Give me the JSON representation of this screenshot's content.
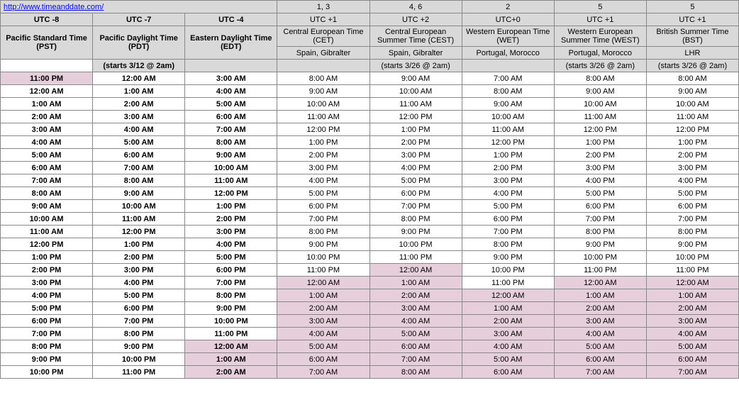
{
  "url": "http://www.timeanddate.com/",
  "topNumbers": [
    "",
    "",
    "",
    "1, 3",
    "4, 6",
    "2",
    "5",
    "5"
  ],
  "utcRow": [
    "UTC -8",
    "UTC -7",
    "UTC -4",
    "UTC +1",
    "UTC +2",
    "UTC+0",
    "UTC +1",
    "UTC +1"
  ],
  "tzNameRow": [
    "Pacific Standard Time (PST)",
    "Pacific Daylight Time (PDT)",
    "Eastern Daylight Time (EDT)",
    "Central European Time (CET)",
    "Central European Summer Time (CEST)",
    "Western European Time (WET)",
    "Western European Summer Time (WEST)",
    "British Summer Time (BST)"
  ],
  "regionRow": [
    "",
    "",
    "",
    "Spain, Gibralter",
    "Spain, Gibralter",
    "Portugal, Morocco",
    "Portugal, Morocco",
    "LHR"
  ],
  "startsRow": [
    "",
    "(starts 3/12 @ 2am)",
    "",
    "",
    "(starts 3/26 @ 2am)",
    "",
    "(starts 3/26 @ 2am)",
    "(starts 3/26 @ 2am)"
  ],
  "boldCols": [
    0,
    1,
    2
  ],
  "colors": {
    "headerBg": "#d9d9d9",
    "pink": "#e6cfda",
    "border": "#888888",
    "link": "#0000ee",
    "text": "#000000",
    "bg": "#ffffff"
  },
  "rows": [
    {
      "cells": [
        "11:00 PM",
        "12:00 AM",
        "3:00 AM",
        "8:00 AM",
        "9:00 AM",
        "7:00 AM",
        "8:00 AM",
        "8:00 AM"
      ],
      "pink": [
        0
      ]
    },
    {
      "cells": [
        "12:00 AM",
        "1:00 AM",
        "4:00 AM",
        "9:00 AM",
        "10:00 AM",
        "8:00 AM",
        "9:00 AM",
        "9:00 AM"
      ],
      "pink": []
    },
    {
      "cells": [
        "1:00 AM",
        "2:00 AM",
        "5:00 AM",
        "10:00 AM",
        "11:00 AM",
        "9:00 AM",
        "10:00 AM",
        "10:00 AM"
      ],
      "pink": []
    },
    {
      "cells": [
        "2:00 AM",
        "3:00 AM",
        "6:00 AM",
        "11:00 AM",
        "12:00 PM",
        "10:00 AM",
        "11:00 AM",
        "11:00 AM"
      ],
      "pink": []
    },
    {
      "cells": [
        "3:00 AM",
        "4:00 AM",
        "7:00 AM",
        "12:00 PM",
        "1:00 PM",
        "11:00 AM",
        "12:00 PM",
        "12:00 PM"
      ],
      "pink": []
    },
    {
      "cells": [
        "4:00 AM",
        "5:00 AM",
        "8:00 AM",
        "1:00 PM",
        "2:00 PM",
        "12:00 PM",
        "1:00 PM",
        "1:00 PM"
      ],
      "pink": []
    },
    {
      "cells": [
        "5:00 AM",
        "6:00 AM",
        "9:00 AM",
        "2:00 PM",
        "3:00 PM",
        "1:00 PM",
        "2:00 PM",
        "2:00 PM"
      ],
      "pink": []
    },
    {
      "cells": [
        "6:00 AM",
        "7:00 AM",
        "10:00 AM",
        "3:00 PM",
        "4:00 PM",
        "2:00 PM",
        "3:00 PM",
        "3:00 PM"
      ],
      "pink": []
    },
    {
      "cells": [
        "7:00 AM",
        "8:00 AM",
        "11:00 AM",
        "4:00 PM",
        "5:00 PM",
        "3:00 PM",
        "4:00 PM",
        "4:00 PM"
      ],
      "pink": [],
      "dashedBelow": true
    },
    {
      "cells": [
        "8:00 AM",
        "9:00 AM",
        "12:00 PM",
        "5:00 PM",
        "6:00 PM",
        "4:00 PM",
        "5:00 PM",
        "5:00 PM"
      ],
      "pink": []
    },
    {
      "cells": [
        "9:00 AM",
        "10:00 AM",
        "1:00 PM",
        "6:00 PM",
        "7:00 PM",
        "5:00 PM",
        "6:00 PM",
        "6:00 PM"
      ],
      "pink": []
    },
    {
      "cells": [
        "10:00 AM",
        "11:00 AM",
        "2:00 PM",
        "7:00 PM",
        "8:00 PM",
        "6:00 PM",
        "7:00 PM",
        "7:00 PM"
      ],
      "pink": []
    },
    {
      "cells": [
        "11:00 AM",
        "12:00 PM",
        "3:00 PM",
        "8:00 PM",
        "9:00 PM",
        "7:00 PM",
        "8:00 PM",
        "8:00 PM"
      ],
      "pink": []
    },
    {
      "cells": [
        "12:00 PM",
        "1:00 PM",
        "4:00 PM",
        "9:00 PM",
        "10:00 PM",
        "8:00 PM",
        "9:00 PM",
        "9:00 PM"
      ],
      "pink": []
    },
    {
      "cells": [
        "1:00 PM",
        "2:00 PM",
        "5:00 PM",
        "10:00 PM",
        "11:00 PM",
        "9:00 PM",
        "10:00 PM",
        "10:00 PM"
      ],
      "pink": []
    },
    {
      "cells": [
        "2:00 PM",
        "3:00 PM",
        "6:00 PM",
        "11:00 PM",
        "12:00 AM",
        "10:00 PM",
        "11:00 PM",
        "11:00 PM"
      ],
      "pink": [
        4
      ]
    },
    {
      "cells": [
        "3:00 PM",
        "4:00 PM",
        "7:00 PM",
        "12:00 AM",
        "1:00 AM",
        "11:00 PM",
        "12:00 AM",
        "12:00 AM"
      ],
      "pink": [
        3,
        4,
        6,
        7
      ]
    },
    {
      "cells": [
        "4:00 PM",
        "5:00 PM",
        "8:00 PM",
        "1:00 AM",
        "2:00 AM",
        "12:00 AM",
        "1:00 AM",
        "1:00 AM"
      ],
      "pink": [
        3,
        4,
        5,
        6,
        7
      ],
      "dashedBelow": true
    },
    {
      "cells": [
        "5:00 PM",
        "6:00 PM",
        "9:00 PM",
        "2:00 AM",
        "3:00 AM",
        "1:00 AM",
        "2:00 AM",
        "2:00 AM"
      ],
      "pink": [
        3,
        4,
        5,
        6,
        7
      ]
    },
    {
      "cells": [
        "6:00 PM",
        "7:00 PM",
        "10:00 PM",
        "3:00 AM",
        "4:00 AM",
        "2:00 AM",
        "3:00 AM",
        "3:00 AM"
      ],
      "pink": [
        3,
        4,
        5,
        6,
        7
      ]
    },
    {
      "cells": [
        "7:00 PM",
        "8:00 PM",
        "11:00 PM",
        "4:00 AM",
        "5:00 AM",
        "3:00 AM",
        "4:00 AM",
        "4:00 AM"
      ],
      "pink": [
        3,
        4,
        5,
        6,
        7
      ]
    },
    {
      "cells": [
        "8:00 PM",
        "9:00 PM",
        "12:00 AM",
        "5:00 AM",
        "6:00 AM",
        "4:00 AM",
        "5:00 AM",
        "5:00 AM"
      ],
      "pink": [
        2,
        3,
        4,
        5,
        6,
        7
      ]
    },
    {
      "cells": [
        "9:00 PM",
        "10:00 PM",
        "1:00 AM",
        "6:00 AM",
        "7:00 AM",
        "5:00 AM",
        "6:00 AM",
        "6:00 AM"
      ],
      "pink": [
        2,
        3,
        4,
        5,
        6,
        7
      ]
    },
    {
      "cells": [
        "10:00 PM",
        "11:00 PM",
        "2:00 AM",
        "7:00 AM",
        "8:00 AM",
        "6:00 AM",
        "7:00 AM",
        "7:00 AM"
      ],
      "pink": [
        2,
        3,
        4,
        5,
        6,
        7
      ]
    }
  ]
}
